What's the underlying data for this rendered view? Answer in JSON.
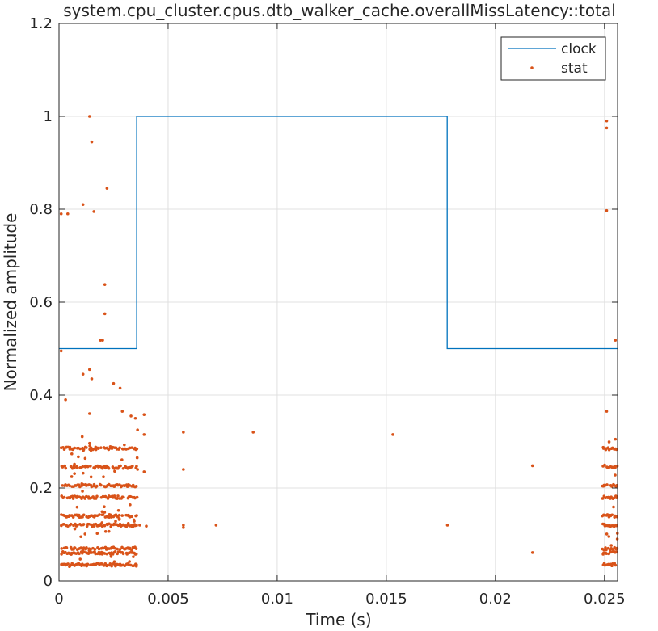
{
  "chart_data": {
    "type": "line",
    "title": "system.cpu_cluster.cpus.dtb_walker_cache.overallMissLatency::total",
    "xlabel": "Time (s)",
    "ylabel": "Normalized amplitude",
    "xlim": [
      0,
      0.0256
    ],
    "ylim": [
      0,
      1.2
    ],
    "xticks": [
      0,
      0.005,
      0.01,
      0.015,
      0.02,
      0.025
    ],
    "xtick_labels": [
      "0",
      "0.005",
      "0.01",
      "0.015",
      "0.02",
      "0.025"
    ],
    "yticks": [
      0,
      0.2,
      0.4,
      0.6,
      0.8,
      1,
      1.2
    ],
    "ytick_labels": [
      "0",
      "0.2",
      "0.4",
      "0.6",
      "0.8",
      "1",
      "1.2"
    ],
    "grid": true,
    "legend_position": "top-right",
    "colors": {
      "clock": "#0072BD",
      "stat": "#D95319",
      "grid": "#e0e0e0",
      "axis": "#262626"
    },
    "series": [
      {
        "name": "clock",
        "kind": "step-line",
        "points": [
          [
            0,
            0.5
          ],
          [
            0.00356,
            0.5
          ],
          [
            0.00356,
            1.0
          ],
          [
            0.01779,
            1.0
          ],
          [
            0.01779,
            0.5
          ],
          [
            0.0256,
            0.5
          ]
        ]
      },
      {
        "name": "stat",
        "kind": "scatter",
        "points": [
          [
            0.0001,
            0.79
          ],
          [
            0.0004,
            0.79
          ],
          [
            0.0001,
            0.495
          ],
          [
            0.0003,
            0.39
          ],
          [
            0.0011,
            0.81
          ],
          [
            0.0014,
            1.0
          ],
          [
            0.0015,
            0.945
          ],
          [
            0.0016,
            0.795
          ],
          [
            0.0022,
            0.845
          ],
          [
            0.0021,
            0.638
          ],
          [
            0.0021,
            0.575
          ],
          [
            0.0019,
            0.518
          ],
          [
            0.002,
            0.518
          ],
          [
            0.0011,
            0.445
          ],
          [
            0.0014,
            0.455
          ],
          [
            0.0015,
            0.435
          ],
          [
            0.0025,
            0.425
          ],
          [
            0.0028,
            0.415
          ],
          [
            0.0014,
            0.36
          ],
          [
            0.0029,
            0.365
          ],
          [
            0.0033,
            0.355
          ],
          [
            0.0035,
            0.35
          ],
          [
            0.0039,
            0.358
          ],
          [
            0.0036,
            0.325
          ],
          [
            0.0039,
            0.315
          ],
          [
            0.0036,
            0.24
          ],
          [
            0.0039,
            0.235
          ],
          [
            0.0037,
            0.12
          ],
          [
            0.004,
            0.118
          ],
          [
            0.0057,
            0.32
          ],
          [
            0.0057,
            0.24
          ],
          [
            0.0057,
            0.12
          ],
          [
            0.0057,
            0.115
          ],
          [
            0.0072,
            0.12
          ],
          [
            0.0089,
            0.32
          ],
          [
            0.0153,
            0.315
          ],
          [
            0.0178,
            0.12
          ],
          [
            0.0217,
            0.248
          ],
          [
            0.0217,
            0.061
          ],
          [
            0.0251,
            0.99
          ],
          [
            0.0251,
            0.975
          ],
          [
            0.0251,
            0.797
          ],
          [
            0.0251,
            0.365
          ],
          [
            0.0255,
            0.518
          ],
          [
            0.0255,
            0.305
          ]
        ],
        "dense_bands": [
          {
            "x_range": [
              0.0001,
              0.0036
            ],
            "y": [
              0.035,
              0.06,
              0.07,
              0.12,
              0.14,
              0.18,
              0.205,
              0.245,
              0.285
            ],
            "extra_y_range": [
              0.03,
              0.32
            ]
          },
          {
            "x_range": [
              0.0249,
              0.0256
            ],
            "y": [
              0.035,
              0.06,
              0.07,
              0.12,
              0.14,
              0.18,
              0.205,
              0.245,
              0.285
            ],
            "extra_y_range": [
              0.03,
              0.3
            ]
          }
        ]
      }
    ]
  }
}
